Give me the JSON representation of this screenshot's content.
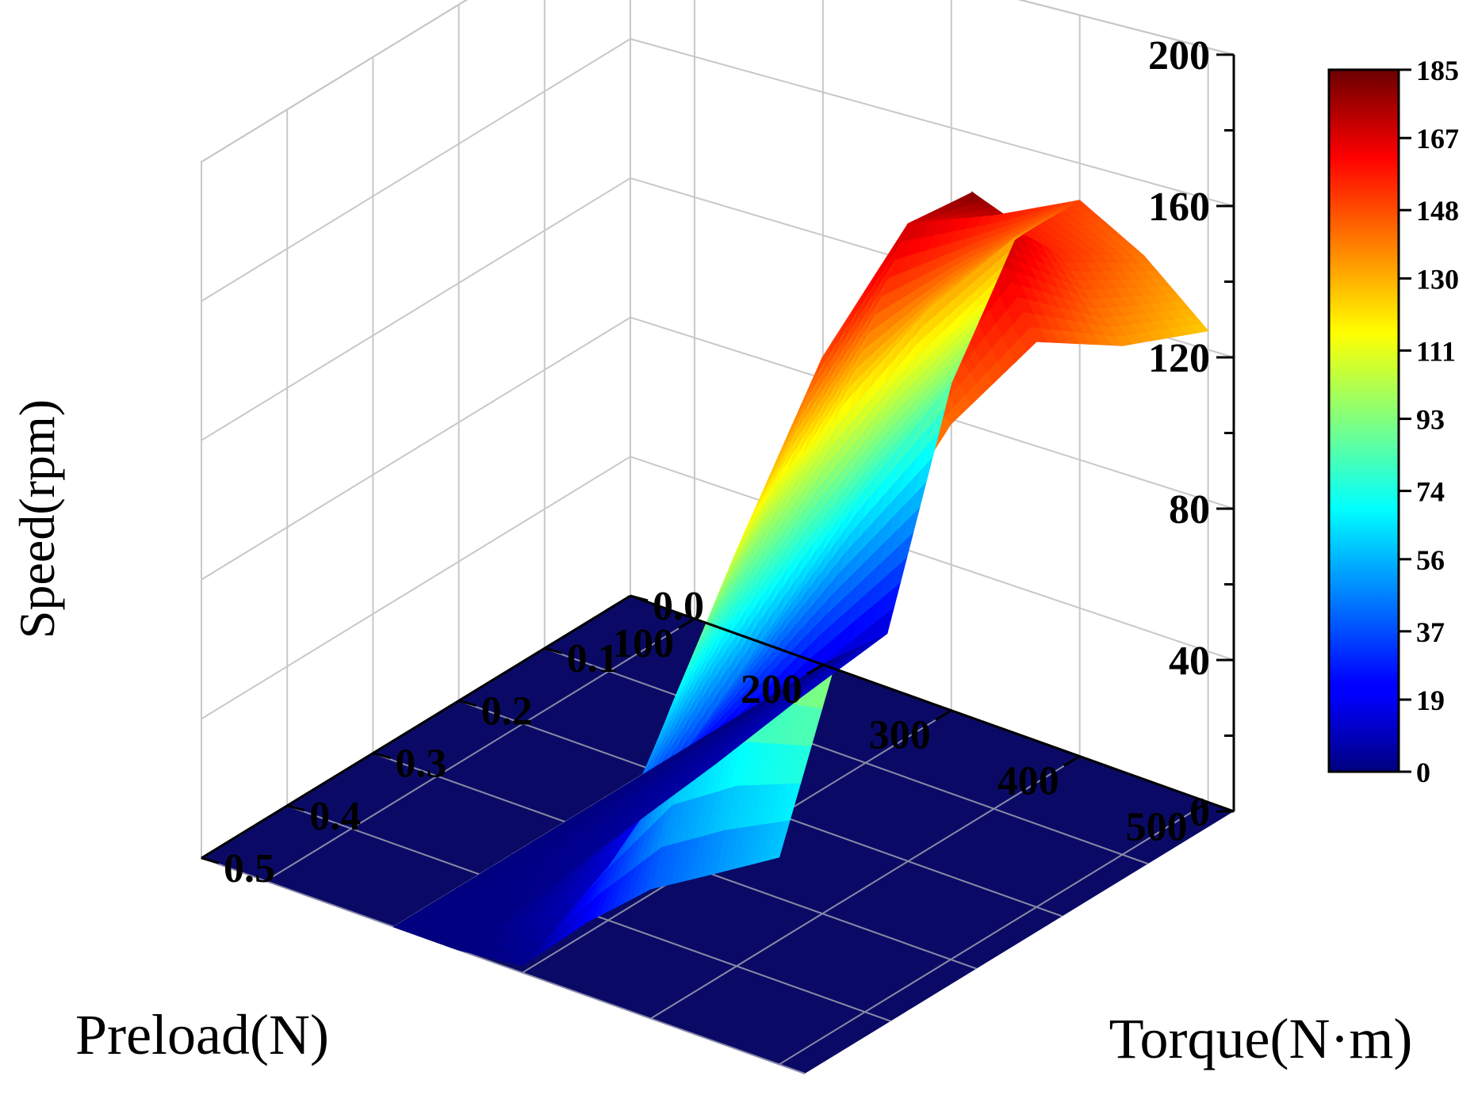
{
  "chart_data": {
    "type": "surface3d",
    "title": "",
    "zlabel": "Speed(rpm)",
    "xlabel": "Preload(N)",
    "ylabel": "Torque(N·m)",
    "z_ticks": [
      "0",
      "40",
      "80",
      "120",
      "160",
      "200"
    ],
    "z_tick_values": [
      0,
      40,
      80,
      120,
      160,
      200
    ],
    "zlim": [
      0,
      200
    ],
    "preload_ticks": [
      "100",
      "200",
      "300",
      "400",
      "500"
    ],
    "preload_tick_values": [
      100,
      200,
      300,
      400,
      500
    ],
    "xlim": [
      50,
      520
    ],
    "torque_ticks": [
      "0.0",
      "0.1",
      "0.2",
      "0.3",
      "0.4",
      "0.5"
    ],
    "torque_tick_values": [
      0.0,
      0.1,
      0.2,
      0.3,
      0.4,
      0.5
    ],
    "ylim": [
      0.0,
      0.5
    ],
    "grid": true,
    "colormap": "jet",
    "colorbar": {
      "range": [
        0,
        185
      ],
      "ticks": [
        "185",
        "167",
        "148",
        "130",
        "111",
        "93",
        "74",
        "56",
        "37",
        "19",
        "0"
      ],
      "tick_values": [
        185,
        167,
        148,
        130,
        111,
        93,
        74,
        56,
        37,
        19,
        0
      ]
    },
    "preload_values": [
      200,
      250,
      300,
      350,
      400,
      450,
      500
    ],
    "torque_values": [
      0.0,
      0.1,
      0.2,
      0.3,
      0.4,
      0.5
    ],
    "speed": [
      [
        0,
        0,
        0,
        0,
        0,
        0
      ],
      [
        15,
        12,
        8,
        5,
        2,
        0
      ],
      [
        90,
        75,
        55,
        35,
        15,
        2
      ],
      [
        135,
        130,
        118,
        95,
        65,
        20
      ],
      [
        150,
        160,
        172,
        150,
        112,
        35
      ],
      [
        140,
        155,
        185,
        158,
        125,
        45
      ],
      [
        125,
        135,
        150,
        142,
        120,
        55
      ]
    ]
  }
}
